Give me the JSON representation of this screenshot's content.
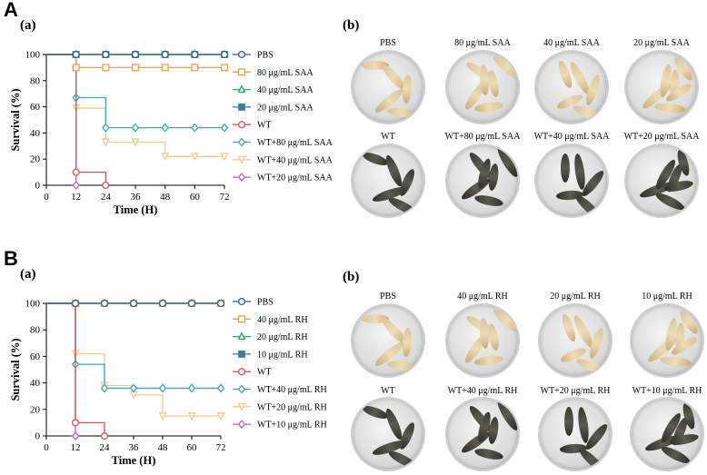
{
  "panel_A": {
    "letter": "A",
    "sub_a": "(a)",
    "sub_b": "(b)",
    "dish_labels_top": [
      "PBS",
      "80 μg/mL SAA",
      "40 μg/mL SAA",
      "20 μg/mL SAA"
    ],
    "dish_labels_bottom": [
      "WT",
      "WT+80 μg/mL SAA",
      "WT+40 μg/mL SAA",
      "WT+20 μg/mL SAA"
    ]
  },
  "panel_B": {
    "letter": "B",
    "sub_a": "(a)",
    "sub_b": "(b)",
    "dish_labels_top": [
      "PBS",
      "40 μg/mL RH",
      "20 μg/mL RH",
      "10 μg/mL RH"
    ],
    "dish_labels_bottom": [
      "WT",
      "WT+40 μg/mL RH",
      "WT+20 μg/mL RH",
      "WT+10 μg/mL RH"
    ]
  },
  "chart_data": [
    {
      "type": "line",
      "xlabel": "Time (H)",
      "ylabel": "Survival (%)",
      "xlim": [
        0,
        72
      ],
      "ylim": [
        0,
        100
      ],
      "xticks": [
        0,
        12,
        24,
        36,
        48,
        60,
        72
      ],
      "yticks": [
        0,
        20,
        40,
        60,
        80,
        100
      ],
      "series": [
        {
          "name": "PBS",
          "color": "#2e5c8a",
          "marker": "circle",
          "x": [
            0,
            12,
            24,
            36,
            48,
            60,
            72
          ],
          "y": [
            100,
            100,
            100,
            100,
            100,
            100,
            100
          ]
        },
        {
          "name": "80 μg/mL SAA",
          "color": "#f39c4a",
          "marker": "square",
          "x": [
            0,
            12,
            24,
            36,
            48,
            60,
            72
          ],
          "y": [
            100,
            90,
            90,
            90,
            90,
            90,
            90
          ]
        },
        {
          "name": "40 μg/mL SAA",
          "color": "#2ca25f",
          "marker": "triangle",
          "x": [
            0,
            12,
            24,
            36,
            48,
            60,
            72
          ],
          "y": [
            100,
            100,
            100,
            100,
            100,
            100,
            100
          ]
        },
        {
          "name": "20 μg/mL SAA",
          "color": "#3b7ea1",
          "marker": "filled-square",
          "x": [
            0,
            12,
            24,
            36,
            48,
            60,
            72
          ],
          "y": [
            100,
            100,
            100,
            100,
            100,
            100,
            100
          ]
        },
        {
          "name": "WT",
          "color": "#d9534f",
          "marker": "circle",
          "x": [
            0,
            12,
            24
          ],
          "y": [
            100,
            10,
            0
          ]
        },
        {
          "name": "WT+80 μg/mL SAA",
          "color": "#3aa9b5",
          "marker": "diamond",
          "x": [
            0,
            12,
            24,
            36,
            48,
            60,
            72
          ],
          "y": [
            100,
            67,
            44,
            44,
            44,
            44,
            44
          ]
        },
        {
          "name": "WT+40 μg/mL SAA",
          "color": "#f5c98a",
          "marker": "triangle-down",
          "x": [
            0,
            12,
            24,
            36,
            48,
            60,
            72
          ],
          "y": [
            100,
            59,
            33,
            33,
            22,
            22,
            22
          ]
        },
        {
          "name": "WT+20 μg/mL SAA",
          "color": "#c05fc0",
          "marker": "diamond",
          "x": [
            0,
            12
          ],
          "y": [
            100,
            0
          ]
        }
      ]
    },
    {
      "type": "line",
      "xlabel": "Time (H)",
      "ylabel": "Survival (%)",
      "xlim": [
        0,
        72
      ],
      "ylim": [
        0,
        100
      ],
      "xticks": [
        0,
        12,
        24,
        36,
        48,
        60,
        72
      ],
      "yticks": [
        0,
        20,
        40,
        60,
        80,
        100
      ],
      "series": [
        {
          "name": "PBS",
          "color": "#2e5c8a",
          "marker": "circle",
          "x": [
            0,
            12,
            24,
            36,
            48,
            60,
            72
          ],
          "y": [
            100,
            100,
            100,
            100,
            100,
            100,
            100
          ]
        },
        {
          "name": "40 μg/mL RH",
          "color": "#f39c4a",
          "marker": "square",
          "x": [
            0,
            12,
            24,
            36,
            48,
            60,
            72
          ],
          "y": [
            100,
            100,
            100,
            100,
            100,
            100,
            100
          ]
        },
        {
          "name": "20 μg/mL RH",
          "color": "#2ca25f",
          "marker": "triangle",
          "x": [
            0,
            12,
            24,
            36,
            48,
            60,
            72
          ],
          "y": [
            100,
            100,
            100,
            100,
            100,
            100,
            100
          ]
        },
        {
          "name": "10 μg/mL RH",
          "color": "#3b7ea1",
          "marker": "filled-square",
          "x": [
            0,
            12,
            24,
            36,
            48,
            60,
            72
          ],
          "y": [
            100,
            100,
            100,
            100,
            100,
            100,
            100
          ]
        },
        {
          "name": "WT",
          "color": "#d9534f",
          "marker": "circle",
          "x": [
            0,
            12,
            24
          ],
          "y": [
            100,
            10,
            0
          ]
        },
        {
          "name": "WT+40 μg/mL RH",
          "color": "#3aa9b5",
          "marker": "diamond",
          "x": [
            0,
            12,
            24,
            36,
            48,
            60,
            72
          ],
          "y": [
            100,
            54,
            36,
            36,
            36,
            36,
            36
          ]
        },
        {
          "name": "WT+20 μg/mL RH",
          "color": "#f5c98a",
          "marker": "triangle-down",
          "x": [
            0,
            12,
            24,
            36,
            48,
            60,
            72
          ],
          "y": [
            100,
            62,
            38,
            31,
            15,
            15,
            15
          ]
        },
        {
          "name": "WT+10 μg/mL RH",
          "color": "#c05fc0",
          "marker": "diamond",
          "x": [
            0,
            12
          ],
          "y": [
            100,
            0
          ]
        }
      ]
    }
  ]
}
